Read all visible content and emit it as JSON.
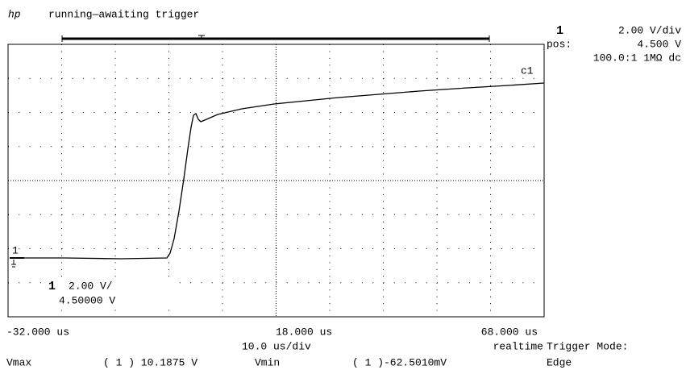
{
  "header": {
    "logo": "hp",
    "status": "running—awaiting trigger"
  },
  "channel": {
    "number": "1",
    "scale": "2.00  V/div",
    "pos_label": "pos:",
    "pos": "4.500  V",
    "probe": "100.0:1  1MΩ dc"
  },
  "trace_label": "c1",
  "ground_marker": "1",
  "on_screen": {
    "number": "1",
    "scale": "2.00  V/",
    "offset": "4.50000  V"
  },
  "time_axis": {
    "left": "-32.000 us",
    "center": "18.000 us",
    "right": "68.000 us",
    "per_div": "10.0 us/div",
    "mode": "realtime"
  },
  "trigger": {
    "label": "Trigger Mode:",
    "mode": "Edge"
  },
  "measurements": {
    "vmax_label": "Vmax",
    "vmax": "( 1 ) 10.1875 V",
    "vmin_label": "Vmin",
    "vmin": "( 1 )-62.5010mV"
  }
}
